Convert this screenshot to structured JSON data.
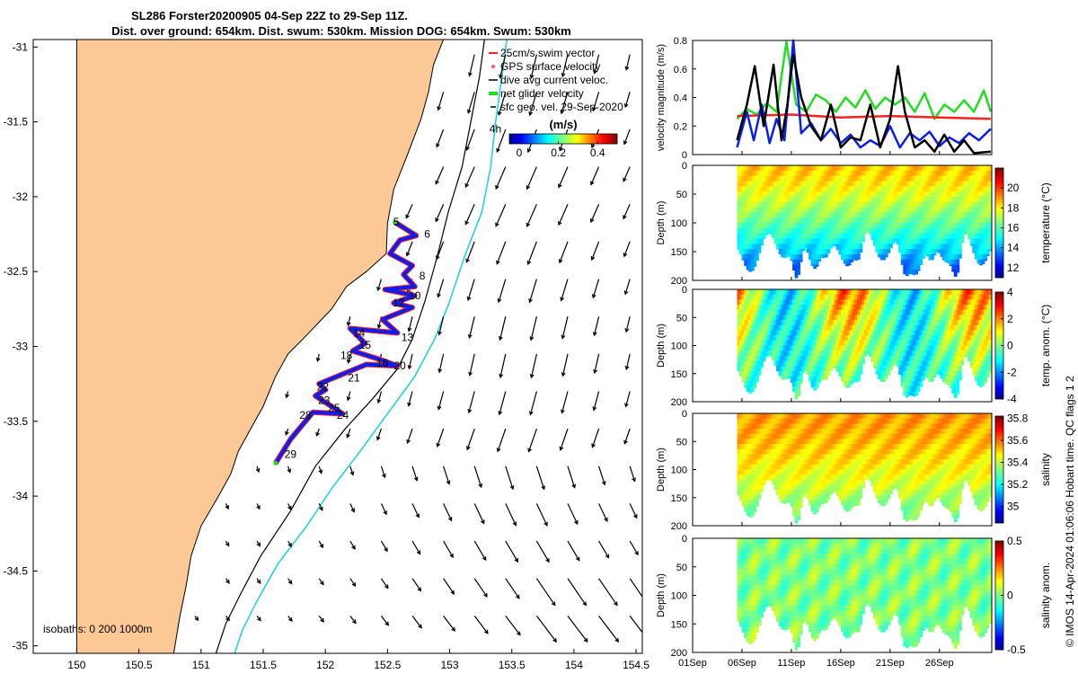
{
  "header": {
    "title_line1": "SL286 Forster20200905 04-Sep 22Z to 29-Sep 11Z.",
    "title_line2": "Dist. over ground: 654km. Dist. swum: 530km. Mission DOG: 654km. Swum: 530km"
  },
  "credit": "© IMOS 14-Apr-2024 01:06:06 Hobart time. QC flags 1  2",
  "colors": {
    "land": "#fbc896",
    "coast": "#000000",
    "iso200": "#000000",
    "iso1000": "#22d4e0",
    "track": "#0a1ef0",
    "surf": "#ff2020",
    "swim": "#ff2020",
    "net": "#22dd22"
  },
  "chart_data": [
    {
      "type": "map",
      "x_ticks": [
        "150",
        "150.5",
        "151",
        "151.5",
        "152",
        "152.5",
        "153",
        "153.5",
        "154",
        "154.5"
      ],
      "x_tick_values": [
        150,
        150.5,
        151,
        151.5,
        152,
        152.5,
        153,
        153.5,
        154,
        154.5
      ],
      "y_ticks": [
        "-31",
        "-31.5",
        "-32",
        "-32.5",
        "-33",
        "-33.5",
        "-34",
        "-34.5",
        "-35"
      ],
      "y_tick_values": [
        -31,
        -31.5,
        -32,
        -32.5,
        -33,
        -33.5,
        -34,
        -34.5,
        -35
      ],
      "xlim": [
        149.65,
        154.55
      ],
      "ylim": [
        -35.05,
        -30.95
      ],
      "legend": [
        "25cm/s swim vector",
        "GPS surface velocity",
        "dive avg current veloc.",
        "net glider velocity",
        "sfc geo. vel. 29-Sep-2020"
      ],
      "legend_position": "top-right",
      "colorbar": {
        "label": "(m/s)",
        "ticks": [
          "0",
          "0.2",
          "0.4"
        ],
        "tick_values": [
          0,
          0.2,
          0.4
        ],
        "range": [
          -0.05,
          0.5
        ]
      },
      "isobath_label": "isobaths: 0   200  1000m",
      "annotation_4h": "4h",
      "day_labels": [
        {
          "t": "5",
          "lon": 152.57,
          "lat": -32.17
        },
        {
          "t": "6",
          "lon": 152.82,
          "lat": -32.25
        },
        {
          "t": "8",
          "lon": 152.78,
          "lat": -32.53
        },
        {
          "t": "10",
          "lon": 152.72,
          "lat": -32.66
        },
        {
          "t": "12",
          "lon": 152.59,
          "lat": -32.71
        },
        {
          "t": "13",
          "lon": 152.66,
          "lat": -32.94
        },
        {
          "t": "14",
          "lon": 152.27,
          "lat": -32.91
        },
        {
          "t": "15",
          "lon": 152.32,
          "lat": -32.99
        },
        {
          "t": "18",
          "lon": 152.17,
          "lat": -33.06
        },
        {
          "t": "16",
          "lon": 152.46,
          "lat": -33.11
        },
        {
          "t": "20",
          "lon": 152.6,
          "lat": -33.13
        },
        {
          "t": "21",
          "lon": 152.23,
          "lat": -33.21
        },
        {
          "t": "22",
          "lon": 151.98,
          "lat": -33.27
        },
        {
          "t": "23",
          "lon": 151.99,
          "lat": -33.36
        },
        {
          "t": "25",
          "lon": 152.07,
          "lat": -33.41
        },
        {
          "t": "28",
          "lon": 151.84,
          "lat": -33.46
        },
        {
          "t": "24",
          "lon": 152.14,
          "lat": -33.46
        },
        {
          "t": "29",
          "lon": 151.72,
          "lat": -33.72
        }
      ],
      "track": [
        [
          152.56,
          -32.17
        ],
        [
          152.73,
          -32.26
        ],
        [
          152.6,
          -32.29
        ],
        [
          152.52,
          -32.38
        ],
        [
          152.7,
          -32.46
        ],
        [
          152.63,
          -32.52
        ],
        [
          152.72,
          -32.6
        ],
        [
          152.48,
          -32.62
        ],
        [
          152.72,
          -32.66
        ],
        [
          152.55,
          -32.71
        ],
        [
          152.7,
          -32.74
        ],
        [
          152.46,
          -32.82
        ],
        [
          152.58,
          -32.91
        ],
        [
          152.2,
          -32.88
        ],
        [
          152.32,
          -32.98
        ],
        [
          152.22,
          -33.03
        ],
        [
          152.45,
          -33.09
        ],
        [
          152.58,
          -33.13
        ],
        [
          152.33,
          -33.12
        ],
        [
          151.95,
          -33.25
        ],
        [
          152.0,
          -33.29
        ],
        [
          151.92,
          -33.33
        ],
        [
          152.14,
          -33.45
        ],
        [
          151.9,
          -33.44
        ],
        [
          151.72,
          -33.62
        ],
        [
          151.6,
          -33.78
        ]
      ],
      "coastline": [
        [
          150.0,
          -30.95
        ],
        [
          152.95,
          -30.95
        ],
        [
          152.87,
          -31.12
        ],
        [
          152.83,
          -31.3
        ],
        [
          152.77,
          -31.48
        ],
        [
          152.66,
          -31.72
        ],
        [
          152.55,
          -31.95
        ],
        [
          152.5,
          -32.18
        ],
        [
          152.49,
          -32.38
        ],
        [
          152.33,
          -32.5
        ],
        [
          152.17,
          -32.6
        ],
        [
          152.05,
          -32.75
        ],
        [
          151.82,
          -32.95
        ],
        [
          151.7,
          -33.05
        ],
        [
          151.6,
          -33.2
        ],
        [
          151.5,
          -33.4
        ],
        [
          151.4,
          -33.55
        ],
        [
          151.3,
          -33.7
        ],
        [
          151.24,
          -33.85
        ],
        [
          151.14,
          -34.0
        ],
        [
          151.0,
          -34.2
        ],
        [
          150.92,
          -34.4
        ],
        [
          150.88,
          -34.6
        ],
        [
          150.83,
          -34.8
        ],
        [
          150.78,
          -35.05
        ],
        [
          150.0,
          -35.05
        ]
      ],
      "isobath_200": [
        [
          153.28,
          -30.95
        ],
        [
          153.24,
          -31.2
        ],
        [
          153.17,
          -31.5
        ],
        [
          153.1,
          -31.8
        ],
        [
          152.99,
          -32.1
        ],
        [
          152.9,
          -32.4
        ],
        [
          152.8,
          -32.7
        ],
        [
          152.7,
          -32.95
        ],
        [
          152.58,
          -33.15
        ],
        [
          152.38,
          -33.35
        ],
        [
          152.16,
          -33.55
        ],
        [
          151.92,
          -33.8
        ],
        [
          151.72,
          -34.1
        ],
        [
          151.48,
          -34.4
        ],
        [
          151.32,
          -34.65
        ],
        [
          151.2,
          -34.85
        ],
        [
          151.12,
          -35.05
        ]
      ],
      "isobath_1000": [
        [
          153.46,
          -30.95
        ],
        [
          153.42,
          -31.2
        ],
        [
          153.37,
          -31.5
        ],
        [
          153.33,
          -31.8
        ],
        [
          153.26,
          -32.1
        ],
        [
          153.12,
          -32.4
        ],
        [
          153.0,
          -32.7
        ],
        [
          152.88,
          -32.95
        ],
        [
          152.72,
          -33.2
        ],
        [
          152.5,
          -33.45
        ],
        [
          152.28,
          -33.7
        ],
        [
          152.05,
          -33.95
        ],
        [
          151.85,
          -34.2
        ],
        [
          151.62,
          -34.45
        ],
        [
          151.45,
          -34.7
        ],
        [
          151.33,
          -34.9
        ],
        [
          151.27,
          -35.05
        ]
      ]
    },
    {
      "type": "line",
      "ylabel": "velocity magnitude (m/s)",
      "ylim": [
        0,
        0.8
      ],
      "y_ticks": [
        "0",
        "0.2",
        "0.4",
        "0.6",
        "0.8"
      ],
      "y_tick_values": [
        0,
        0.2,
        0.4,
        0.6,
        0.8
      ],
      "xlim": [
        0,
        30.3
      ],
      "x_ticks": [
        "01Sep",
        "06Sep",
        "11Sep",
        "16Sep",
        "21Sep",
        "26Sep"
      ],
      "x_tick_values": [
        0,
        5,
        10,
        15,
        20,
        25
      ],
      "series": [
        {
          "color": "#22dd22",
          "values": [
            [
              4.5,
              0.25
            ],
            [
              5.5,
              0.32
            ],
            [
              6.5,
              0.28
            ],
            [
              7.5,
              0.36
            ],
            [
              8.5,
              0.3
            ],
            [
              9.5,
              0.79
            ],
            [
              10.5,
              0.35
            ],
            [
              11.5,
              0.3
            ],
            [
              12.5,
              0.42
            ],
            [
              13.5,
              0.38
            ],
            [
              14.5,
              0.3
            ],
            [
              15.5,
              0.4
            ],
            [
              16.5,
              0.33
            ],
            [
              17.5,
              0.45
            ],
            [
              18.5,
              0.32
            ],
            [
              19.5,
              0.4
            ],
            [
              20.5,
              0.35
            ],
            [
              21.5,
              0.4
            ],
            [
              22.5,
              0.3
            ],
            [
              23.5,
              0.43
            ],
            [
              24.5,
              0.25
            ],
            [
              25.5,
              0.35
            ],
            [
              26.5,
              0.3
            ],
            [
              27.5,
              0.38
            ],
            [
              28.5,
              0.3
            ],
            [
              29.5,
              0.45
            ],
            [
              30.2,
              0.3
            ]
          ]
        },
        {
          "color": "#ff2020",
          "values": [
            [
              4.5,
              0.27
            ],
            [
              10,
              0.28
            ],
            [
              15,
              0.26
            ],
            [
              20,
              0.27
            ],
            [
              25,
              0.26
            ],
            [
              30.2,
              0.25
            ]
          ]
        },
        {
          "color": "#0a1ef0",
          "values": [
            [
              4.5,
              0.05
            ],
            [
              5.5,
              0.3
            ],
            [
              6.2,
              0.1
            ],
            [
              7,
              0.35
            ],
            [
              7.8,
              0.08
            ],
            [
              8.5,
              0.25
            ],
            [
              9.3,
              0.1
            ],
            [
              10.2,
              0.8
            ],
            [
              11,
              0.15
            ],
            [
              12,
              0.22
            ],
            [
              13,
              0.1
            ],
            [
              14,
              0.18
            ],
            [
              15,
              0.08
            ],
            [
              16,
              0.14
            ],
            [
              17,
              0.05
            ],
            [
              18,
              0.1
            ],
            [
              19,
              0.06
            ],
            [
              20,
              0.2
            ],
            [
              21,
              0.05
            ],
            [
              22,
              0.15
            ],
            [
              23,
              0.1
            ],
            [
              24,
              0.16
            ],
            [
              25,
              0.06
            ],
            [
              26,
              0.12
            ],
            [
              27,
              0.08
            ],
            [
              28,
              0.15
            ],
            [
              29,
              0.1
            ],
            [
              30.2,
              0.18
            ]
          ]
        },
        {
          "color": "#000000",
          "values": [
            [
              4.5,
              0.1
            ],
            [
              5.5,
              0.35
            ],
            [
              6.3,
              0.62
            ],
            [
              7.2,
              0.2
            ],
            [
              8.2,
              0.63
            ],
            [
              9,
              0.1
            ],
            [
              9.6,
              0.35
            ],
            [
              10.2,
              0.7
            ],
            [
              11,
              0.4
            ],
            [
              12,
              0.2
            ],
            [
              13,
              0.1
            ],
            [
              14,
              0.35
            ],
            [
              15,
              0.05
            ],
            [
              16,
              0.12
            ],
            [
              17,
              0.1
            ],
            [
              18,
              0.35
            ],
            [
              19,
              0.05
            ],
            [
              20,
              0.25
            ],
            [
              20.8,
              0.62
            ],
            [
              21.5,
              0.3
            ],
            [
              22.5,
              0.05
            ],
            [
              23.5,
              0.1
            ],
            [
              24.5,
              0.02
            ],
            [
              25.5,
              0.14
            ],
            [
              26.5,
              0.02
            ],
            [
              27.5,
              0.1
            ],
            [
              28.5,
              0.01
            ],
            [
              30.2,
              0.02
            ]
          ]
        }
      ]
    },
    {
      "type": "heatmap",
      "ylabel": "Depth (m)",
      "colorbar_label": "temperature (°C)",
      "clim": [
        11,
        22
      ],
      "cb_ticks": [
        "12",
        "14",
        "16",
        "18",
        "20"
      ],
      "cb_tick_values": [
        12,
        14,
        16,
        18,
        20
      ],
      "ylim": [
        0,
        200
      ],
      "y_ticks": [
        "0",
        "50",
        "100",
        "150",
        "200"
      ],
      "y_tick_values": [
        0,
        50,
        100,
        150,
        200
      ]
    },
    {
      "type": "heatmap",
      "ylabel": "Depth (m)",
      "colorbar_label": "temp. anom. (°C)",
      "clim": [
        -4,
        4
      ],
      "cb_ticks": [
        "-4",
        "-2",
        "0",
        "2",
        "4"
      ],
      "cb_tick_values": [
        -4,
        -2,
        0,
        2,
        4
      ],
      "ylim": [
        0,
        200
      ],
      "y_ticks": [
        "0",
        "50",
        "100",
        "150",
        "200"
      ],
      "y_tick_values": [
        0,
        50,
        100,
        150,
        200
      ]
    },
    {
      "type": "heatmap",
      "ylabel": "Depth (m)",
      "colorbar_label": "salinity",
      "clim": [
        34.85,
        35.82
      ],
      "cb_ticks": [
        "35",
        "35.2",
        "35.4",
        "35.6",
        "35.8"
      ],
      "cb_tick_values": [
        35,
        35.2,
        35.4,
        35.6,
        35.8
      ],
      "ylim": [
        0,
        200
      ],
      "y_ticks": [
        "0",
        "50",
        "100",
        "150",
        "200"
      ],
      "y_tick_values": [
        0,
        50,
        100,
        150,
        200
      ]
    },
    {
      "type": "heatmap",
      "ylabel": "Depth (m)",
      "colorbar_label": "salinity anom.",
      "clim": [
        -0.5,
        0.5
      ],
      "cb_ticks": [
        "-0.5",
        "0",
        "0.5"
      ],
      "cb_tick_values": [
        -0.5,
        0,
        0.5
      ],
      "ylim": [
        0,
        200
      ],
      "y_ticks": [
        "0",
        "50",
        "100",
        "150",
        "200"
      ],
      "y_tick_values": [
        0,
        50,
        100,
        150,
        200
      ]
    }
  ]
}
